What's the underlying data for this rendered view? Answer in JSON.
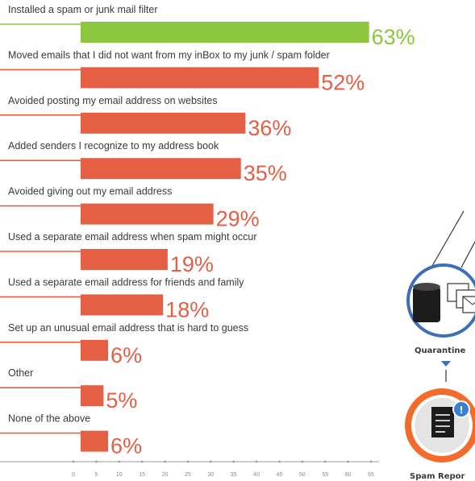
{
  "chart_data": {
    "type": "bar",
    "orientation": "horizontal",
    "categories": [
      "Installed a spam or junk mail filter",
      "Moved emails that I did not want from my inBox to my junk / spam folder",
      "Avoided posting my email address on websites",
      "Added senders I recognize to my address book",
      "Avoided giving out my email address",
      "Used a separate email address when  spam might occur",
      "Used a separate email address for  friends and family",
      "Set up an unusual email address  that is hard to guess",
      "Other",
      "None of the above"
    ],
    "values": [
      63,
      52,
      36,
      35,
      29,
      19,
      18,
      6,
      5,
      6
    ],
    "value_labels": [
      "63%",
      "52%",
      "36%",
      "35%",
      "29%",
      "19%",
      "18%",
      "6%",
      "5%",
      "6%"
    ],
    "xticks": [
      "0",
      "5",
      "10",
      "15",
      "20",
      "25",
      "30",
      "35",
      "40",
      "45",
      "50",
      "55",
      "60",
      "65"
    ],
    "xlim": [
      0,
      65
    ],
    "highlight_index": 0,
    "colors": {
      "highlight": "#8cc63f",
      "bar": "#e45f44",
      "axis": "#9a9a9a",
      "ring_blue": "#3d6fb6",
      "ring_orange": "#f26b2a",
      "badge": "#3a7fd5"
    }
  },
  "side_graphic": {
    "quarantine_label": "Quarantine",
    "spam_report_label": "Spam Repor",
    "badge_text": "!"
  }
}
